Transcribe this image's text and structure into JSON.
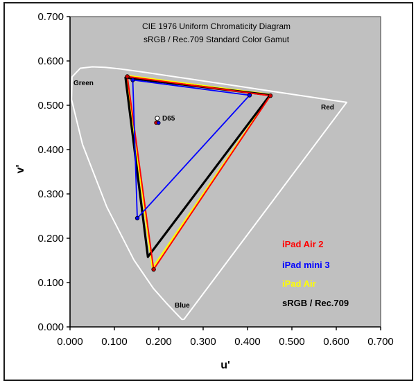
{
  "title": {
    "line1": "CIE 1976 Uniform Chromaticity Diagram",
    "line2": "sRGB / Rec.709 Standard Color Gamut"
  },
  "axes": {
    "x_label": "u'",
    "y_label": "v'",
    "x_ticks": [
      "0.000",
      "0.100",
      "0.200",
      "0.300",
      "0.400",
      "0.500",
      "0.600",
      "0.700"
    ],
    "y_ticks": [
      "0.000",
      "0.100",
      "0.200",
      "0.300",
      "0.400",
      "0.500",
      "0.600",
      "0.700"
    ]
  },
  "plot": {
    "bg": "#c0c0c0",
    "border_color": "#3f3f3f",
    "axis_color": "#000000"
  },
  "legend": {
    "items": [
      {
        "label": "iPad Air 2",
        "color": "#ff0000"
      },
      {
        "label": "iPad mini 3",
        "color": "#0000ff"
      },
      {
        "label": "iPad Air",
        "color": "#ffff00"
      },
      {
        "label": "sRGB / Rec.709",
        "color": "#000000"
      }
    ]
  },
  "chart_data": {
    "type": "line",
    "title": "CIE 1976 Uniform Chromaticity Diagram",
    "subtitle": "sRGB / Rec.709 Standard Color Gamut",
    "xlabel": "u'",
    "ylabel": "v'",
    "xlim": [
      0,
      0.7
    ],
    "ylim": [
      0,
      0.7
    ],
    "grid": false,
    "legend_position": "inside-lower-right",
    "series": [
      {
        "name": "iPad Air",
        "id": "ipad-air",
        "color": "#ffff00",
        "width": 2.4,
        "markers": false,
        "points": [
          [
            0.1265,
            0.567
          ],
          [
            0.453,
            0.524
          ],
          [
            0.186,
            0.133
          ]
        ]
      },
      {
        "name": "sRGB / Rec.709",
        "id": "srgb-rec709",
        "color": "#000000",
        "width": 3.2,
        "markers": false,
        "points": [
          [
            0.125,
            0.5625
          ],
          [
            0.4507,
            0.5229
          ],
          [
            0.1754,
            0.1579
          ]
        ]
      },
      {
        "name": "iPad Air 2",
        "id": "ipad-air-2",
        "color": "#ff0000",
        "width": 2,
        "markers": true,
        "marker_fill": "#cc0000",
        "points": [
          [
            0.129,
            0.5648
          ],
          [
            0.4516,
            0.5216
          ],
          [
            0.1884,
            0.1297
          ]
        ]
      },
      {
        "name": "iPad mini 3",
        "id": "ipad-mini-3",
        "color": "#0000ff",
        "width": 1.8,
        "markers": true,
        "marker_fill": "#0000ee",
        "points": [
          [
            0.1414,
            0.557
          ],
          [
            0.4047,
            0.5227
          ],
          [
            0.1516,
            0.2453
          ]
        ]
      }
    ],
    "whitepoint": {
      "name": "D65",
      "markers": [
        {
          "id": "d65-red-dot",
          "u": 0.194,
          "v": 0.4606,
          "r": 2.4,
          "fill": "#cc0000",
          "stroke": "#330000"
        },
        {
          "id": "d65-blue-dot",
          "u": 0.1996,
          "v": 0.4603,
          "r": 2.4,
          "fill": "#0000ee",
          "stroke": "#000033"
        },
        {
          "id": "d65-white-dot",
          "u": 0.1965,
          "v": 0.4708,
          "r": 3.0,
          "fill": "#ffffff",
          "stroke": "#000000"
        }
      ]
    },
    "spectral_locus_color": "#ffffff",
    "spectral_locus": [
      [
        0.2569,
        0.0172
      ],
      [
        0.2522,
        0.0169
      ],
      [
        0.2347,
        0.035
      ],
      [
        0.2161,
        0.0549
      ],
      [
        0.1877,
        0.0871
      ],
      [
        0.1441,
        0.151
      ],
      [
        0.0828,
        0.2708
      ],
      [
        0.0282,
        0.4117
      ],
      [
        0.0035,
        0.5131
      ],
      [
        0.0046,
        0.5639
      ],
      [
        0.0231,
        0.5836
      ],
      [
        0.0501,
        0.5867
      ],
      [
        0.0792,
        0.5856
      ],
      [
        0.1127,
        0.5821
      ],
      [
        0.1531,
        0.5766
      ],
      [
        0.2026,
        0.5694
      ],
      [
        0.2623,
        0.5604
      ],
      [
        0.3316,
        0.5501
      ],
      [
        0.4035,
        0.5393
      ],
      [
        0.4692,
        0.5296
      ],
      [
        0.5202,
        0.5219
      ],
      [
        0.583,
        0.5125
      ],
      [
        0.6234,
        0.5065
      ]
    ],
    "annotations": [
      {
        "id": "green-label",
        "text": "Green",
        "u": 0.0078,
        "v": 0.5453
      },
      {
        "id": "red-label",
        "text": "Red",
        "u": 0.5656,
        "v": 0.4906
      },
      {
        "id": "blue-label",
        "text": "Blue",
        "u": 0.2359,
        "v": 0.0438
      },
      {
        "id": "d65-label",
        "text": "D65",
        "u": 0.2078,
        "v": 0.4656
      }
    ]
  }
}
